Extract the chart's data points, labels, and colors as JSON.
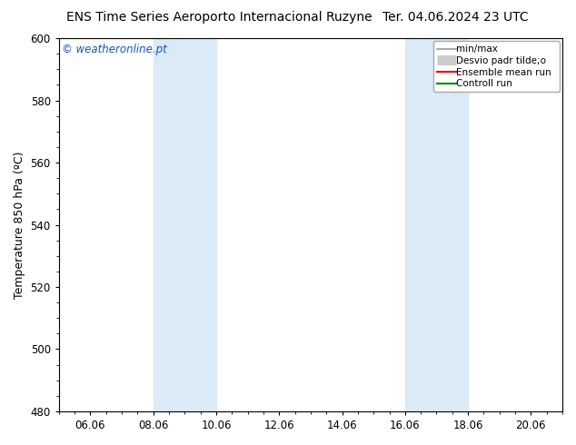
{
  "title_left": "ENS Time Series Aeroporto Internacional Ruzyne",
  "title_right": "Ter. 04.06.2024 23 UTC",
  "ylabel": "Temperature 850 hPa (ºC)",
  "ylim": [
    480,
    600
  ],
  "yticks": [
    480,
    500,
    520,
    540,
    560,
    580,
    600
  ],
  "xtick_labels": [
    "06.06",
    "08.06",
    "10.06",
    "12.06",
    "14.06",
    "16.06",
    "18.06",
    "20.06"
  ],
  "xtick_positions": [
    1,
    3,
    5,
    7,
    9,
    11,
    13,
    15
  ],
  "xlim": [
    0,
    16
  ],
  "shaded_regions": [
    {
      "xstart": 3,
      "xend": 5
    },
    {
      "xstart": 11,
      "xend": 13
    }
  ],
  "shaded_color": "#daeaf7",
  "background_color": "#ffffff",
  "plot_bg_color": "#ffffff",
  "border_color": "#000000",
  "watermark_text": "© weatheronline.pt",
  "watermark_color": "#1155bb",
  "legend_entries": [
    {
      "label": "min/max",
      "color": "#999999",
      "lw": 1.2,
      "ls": "-",
      "type": "line"
    },
    {
      "label": "Desvio padr tilde;o",
      "color": "#cccccc",
      "lw": 8,
      "ls": "-",
      "type": "thick"
    },
    {
      "label": "Ensemble mean run",
      "color": "#ee0000",
      "lw": 1.5,
      "ls": "-",
      "type": "line"
    },
    {
      "label": "Controll run",
      "color": "#008800",
      "lw": 1.5,
      "ls": "-",
      "type": "line"
    }
  ],
  "title_fontsize": 10,
  "axis_label_fontsize": 9,
  "tick_fontsize": 8.5,
  "legend_fontsize": 7.5,
  "watermark_fontsize": 8.5
}
